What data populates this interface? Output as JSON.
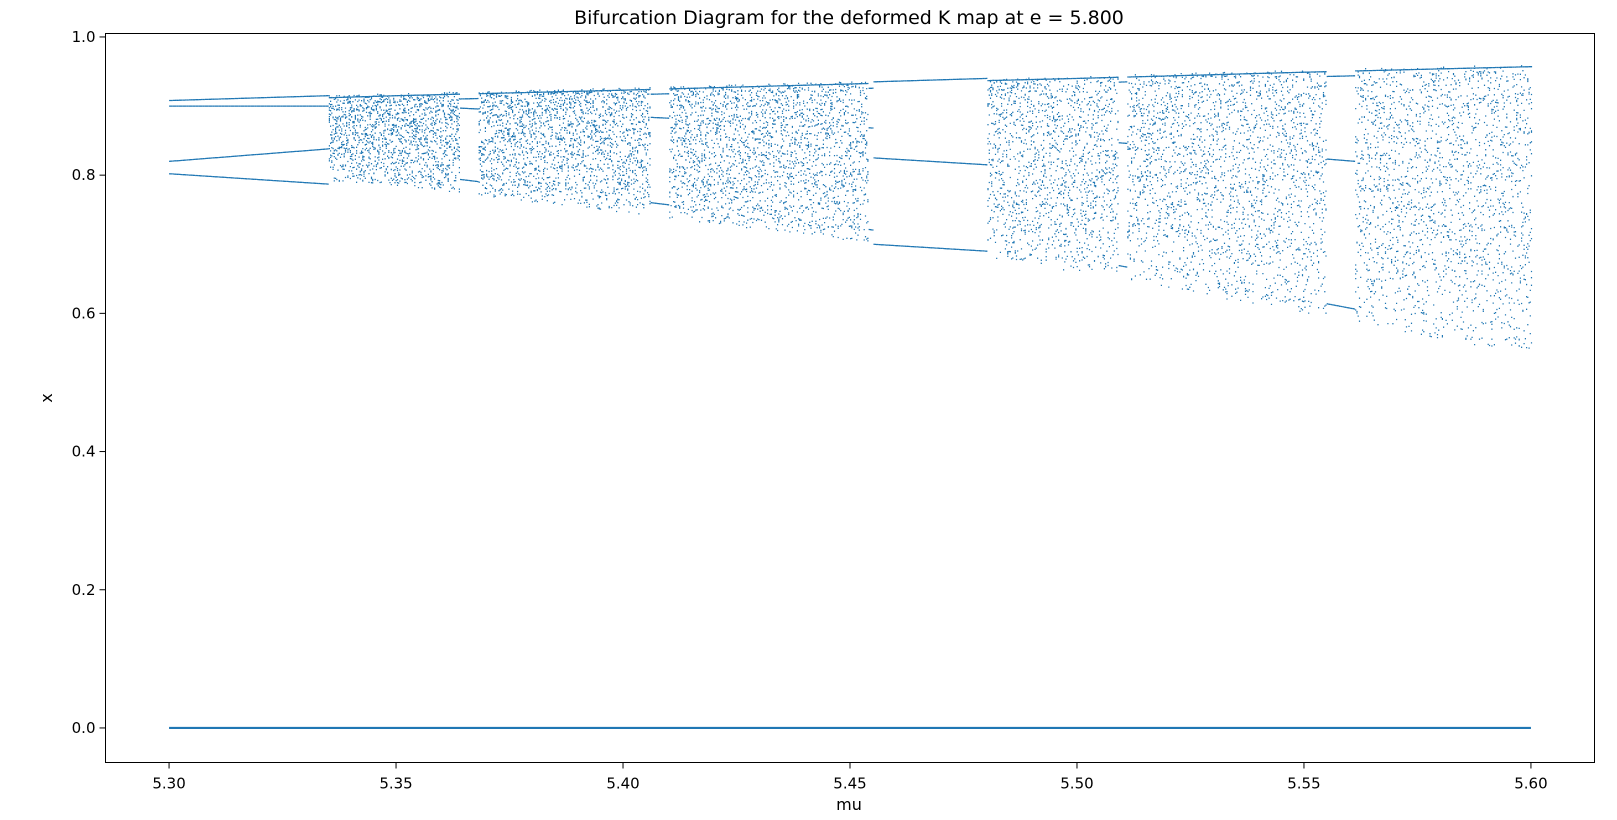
{
  "chart_data": {
    "type": "scatter",
    "title": "Bifurcation Diagram for the deformed K map at e = 5.800",
    "xlabel": "mu",
    "ylabel": "x",
    "xlim": [
      5.286,
      5.614
    ],
    "ylim": [
      -0.05,
      1.005
    ],
    "xticks": [
      5.3,
      5.35,
      5.4,
      5.45,
      5.5,
      5.55,
      5.6
    ],
    "xtick_labels": [
      "5.30",
      "5.35",
      "5.40",
      "5.45",
      "5.50",
      "5.55",
      "5.60"
    ],
    "yticks": [
      0.0,
      0.2,
      0.4,
      0.6,
      0.8,
      1.0
    ],
    "ytick_labels": [
      "0.0",
      "0.2",
      "0.4",
      "0.6",
      "0.8",
      "1.0"
    ],
    "grid": false,
    "color": "#1f77b4",
    "series": [
      {
        "mu_range": [
          5.3,
          5.6
        ],
        "fixed_branch_x": 0.0,
        "periodic_branches": [
          {
            "mu": [
              5.3,
              5.335
            ],
            "x_start": [
              0.908,
              0.9,
              0.82,
              0.802
            ],
            "x_end": [
              0.915,
              0.9,
              0.838,
              0.787
            ]
          },
          {
            "mu": [
              5.455,
              5.48
            ],
            "x_start": [
              0.935,
              0.825,
              0.7
            ],
            "x_end": [
              0.94,
              0.815,
              0.69
            ]
          }
        ],
        "chaotic_envelope": {
          "mu": [
            5.3,
            5.35,
            5.4,
            5.45,
            5.5,
            5.55,
            5.6
          ],
          "x_min": [
            0.802,
            0.785,
            0.745,
            0.705,
            0.66,
            0.6,
            0.538
          ],
          "x_max": [
            0.908,
            0.918,
            0.926,
            0.935,
            0.943,
            0.952,
            0.96
          ]
        },
        "windows": [
          {
            "mu": [
              5.364,
              5.368
            ]
          },
          {
            "mu": [
              5.406,
              5.41
            ]
          },
          {
            "mu": [
              5.454,
              5.48
            ]
          },
          {
            "mu": [
              5.509,
              5.511
            ]
          },
          {
            "mu": [
              5.555,
              5.561
            ]
          }
        ]
      }
    ]
  }
}
